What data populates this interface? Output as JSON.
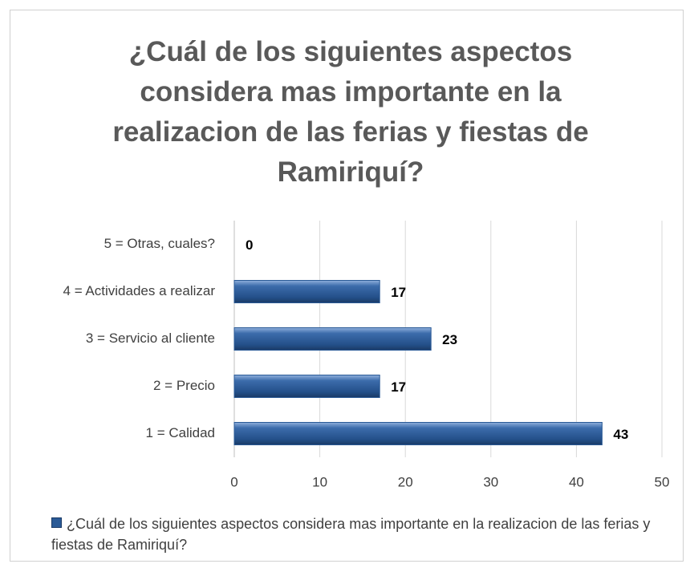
{
  "chart_data": {
    "type": "bar",
    "orientation": "horizontal",
    "title": "¿Cuál de los siguientes aspectos considera mas importante en la realizacion de las ferias y fiestas de Ramiriquí?",
    "categories": [
      "1 = Calidad",
      "2 = Precio",
      "3 = Servicio al cliente",
      "4 = Actividades a realizar",
      "5 = Otras, cuales?"
    ],
    "series": [
      {
        "name": "¿Cuál de los siguientes aspectos considera mas importante en la realizacion de las ferias y fiestas de Ramiriquí?",
        "color": "#2a5a96",
        "values": [
          43,
          17,
          23,
          17,
          0
        ]
      }
    ],
    "xlim": [
      0,
      50
    ],
    "xticks": [
      0,
      10,
      20,
      30,
      40,
      50
    ],
    "grid": true,
    "legend": "bottom"
  }
}
